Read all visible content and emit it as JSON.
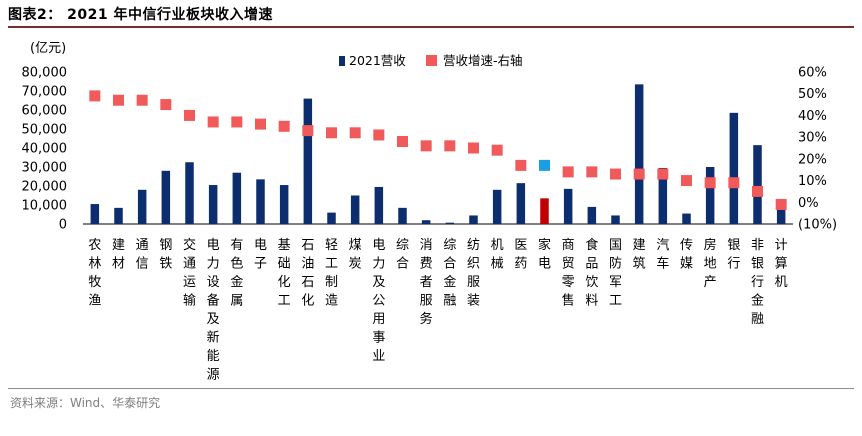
{
  "figure": {
    "title": "图表2：  2021 年中信行业板块收入增速",
    "source": "资料来源：Wind、华泰研究"
  },
  "colors": {
    "bar": "#0d2e6e",
    "bar_highlight": "#c00000",
    "marker": "#f05a5a",
    "marker_highlight": "#1aa0e0",
    "rule": "#7a2b2b"
  },
  "chart_data": {
    "type": "bar",
    "left_unit": "(亿元)",
    "legend": [
      "2021营收",
      "营收增速-右轴"
    ],
    "legend_position": "top-center",
    "categories": [
      "农林牧渔",
      "建材",
      "通信",
      "钢铁",
      "交通运输",
      "电力设备及新能源",
      "有色金属",
      "电子",
      "基础化工",
      "石油石化",
      "轻工制造",
      "煤炭",
      "电力及公用事业",
      "综合",
      "消费者服务",
      "综合金融",
      "纺织服装",
      "机械",
      "医药",
      "家电",
      "商贸零售",
      "食品饮料",
      "国防军工",
      "建筑",
      "汽车",
      "传媒",
      "房地产",
      "银行",
      "非银行金融",
      "计算机"
    ],
    "highlight_index": 19,
    "series": [
      {
        "name": "2021营收",
        "axis": "left",
        "type": "bar",
        "values": [
          10500,
          8500,
          18000,
          28000,
          32500,
          20500,
          27000,
          23500,
          20500,
          66000,
          6000,
          15000,
          19500,
          8500,
          2000,
          700,
          4500,
          18000,
          21500,
          13500,
          18500,
          9000,
          4500,
          73500,
          29500,
          5500,
          30000,
          58500,
          41500,
          10000
        ]
      },
      {
        "name": "营收增速-右轴",
        "axis": "right",
        "type": "scatter",
        "values": [
          49,
          47,
          47,
          45,
          40,
          37,
          37,
          36,
          35,
          33,
          32,
          32,
          31,
          28,
          26,
          26,
          25,
          24,
          17,
          17,
          14,
          14,
          13,
          13,
          13,
          10,
          9,
          9,
          5,
          -1
        ]
      }
    ],
    "y_left": {
      "min": 0,
      "max": 80000,
      "ticks": [
        "0",
        "10,000",
        "20,000",
        "30,000",
        "40,000",
        "50,000",
        "60,000",
        "70,000",
        "80,000"
      ]
    },
    "y_right": {
      "min": -10,
      "max": 60,
      "ticks": [
        "(10%)",
        "0%",
        "10%",
        "20%",
        "30%",
        "40%",
        "50%",
        "60%"
      ]
    },
    "grid": false
  }
}
